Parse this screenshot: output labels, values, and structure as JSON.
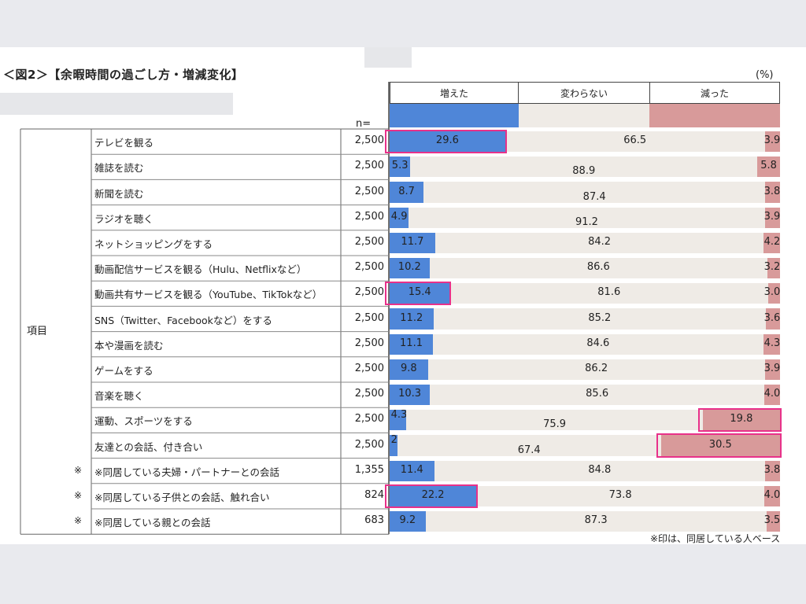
{
  "title": "＜図2＞【余暇時間の過ごし方・増減変化】",
  "unit": "(%)",
  "n_label": "n=",
  "row_axis_label": "項目",
  "footnote": "※印は、同居している人ベース",
  "colors": {
    "increased": "#4f86d8",
    "unchanged": "#efebe6",
    "decreased": "#d89a9a",
    "highlight": "#e8318a"
  },
  "chart_data": {
    "type": "bar",
    "stacked": true,
    "orientation": "horizontal",
    "xlim": [
      0,
      100
    ],
    "legend": [
      "増えた",
      "変わらない",
      "減った"
    ],
    "categories": [
      "テレビを観る",
      "雑誌を読む",
      "新聞を読む",
      "ラジオを聴く",
      "ネットショッピングをする",
      "動画配信サービスを観る（Hulu、Netflixなど）",
      "動画共有サービスを観る（YouTube、TikTokなど）",
      "SNS（Twitter、Facebookなど）をする",
      "本や漫画を読む",
      "ゲームをする",
      "音楽を聴く",
      "運動、スポーツをする",
      "友達との会話、付き合い",
      "※同居している夫婦・パートナーとの会話",
      "※同居している子供との会話、触れ合い",
      "※同居している親との会話"
    ],
    "marks": [
      "",
      "",
      "",
      "",
      "",
      "",
      "",
      "",
      "",
      "",
      "",
      "",
      "",
      "※",
      "※",
      "※"
    ],
    "n": [
      "2,500",
      "2,500",
      "2,500",
      "2,500",
      "2,500",
      "2,500",
      "2,500",
      "2,500",
      "2,500",
      "2,500",
      "2,500",
      "2,500",
      "2,500",
      "1,355",
      "824",
      "683"
    ],
    "series": [
      {
        "name": "増えた",
        "values": [
          29.6,
          5.3,
          8.7,
          4.9,
          11.7,
          10.2,
          15.4,
          11.2,
          11.1,
          9.8,
          10.3,
          4.3,
          2.0,
          11.4,
          22.2,
          9.2
        ]
      },
      {
        "name": "変わらない",
        "values": [
          66.5,
          88.9,
          87.4,
          91.2,
          84.2,
          86.6,
          81.6,
          85.2,
          84.6,
          86.2,
          85.6,
          75.9,
          67.4,
          84.8,
          73.8,
          87.3
        ]
      },
      {
        "name": "減った",
        "values": [
          3.9,
          5.8,
          3.8,
          3.9,
          4.2,
          3.2,
          3.0,
          3.6,
          4.3,
          3.9,
          4.0,
          19.8,
          30.5,
          3.8,
          4.0,
          3.5
        ]
      }
    ],
    "highlights": [
      {
        "row": 0,
        "series": 0
      },
      {
        "row": 6,
        "series": 0
      },
      {
        "row": 11,
        "series": 2
      },
      {
        "row": 12,
        "series": 2
      },
      {
        "row": 14,
        "series": 0
      }
    ]
  }
}
